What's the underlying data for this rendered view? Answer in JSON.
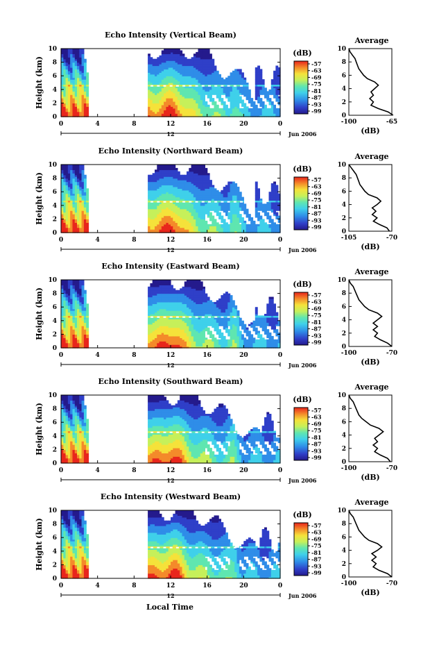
{
  "chart_data": {
    "type": "heatmap",
    "xlabel": "Local Time",
    "date_label": "Jun 2006",
    "colorbar": {
      "unit": "(dB)",
      "ticks": [
        "-57",
        "-63",
        "-69",
        "-75",
        "-81",
        "-87",
        "-93",
        "-99"
      ],
      "range": [
        -99,
        -57
      ]
    },
    "x_ticks": [
      "0",
      "4",
      "8",
      "12",
      "16",
      "20",
      "0"
    ],
    "xlim": [
      0,
      24
    ],
    "midnight_label": "12",
    "y_ticks": [
      "0",
      "2",
      "4",
      "6",
      "8",
      "10"
    ],
    "ylim": [
      0,
      10
    ],
    "ylabel": "Height (km)",
    "data_gap_hours": [
      3,
      9.4
    ],
    "melting_layer_km": 4.5,
    "panels": [
      {
        "title": "Echo Intensity (Vertical Beam)",
        "profile": {
          "title": "Average",
          "xlabel": "(dB)",
          "x_ticks": [
            "-100",
            "-65"
          ],
          "xlim": [
            -100,
            -65
          ],
          "y_ticks": [
            "0",
            "2",
            "4",
            "6",
            "8",
            "10"
          ],
          "points": [
            [
              -64,
              0
            ],
            [
              -68,
              0.5
            ],
            [
              -76,
              1
            ],
            [
              -82,
              1.5
            ],
            [
              -80,
              2
            ],
            [
              -83,
              2.5
            ],
            [
              -80,
              3
            ],
            [
              -82,
              3.5
            ],
            [
              -79,
              4
            ],
            [
              -76,
              4.5
            ],
            [
              -79,
              5
            ],
            [
              -85,
              5.5
            ],
            [
              -88,
              6
            ],
            [
              -90,
              6.5
            ],
            [
              -92,
              7
            ],
            [
              -93,
              7.5
            ],
            [
              -94,
              8
            ],
            [
              -95,
              8.5
            ],
            [
              -97,
              9
            ],
            [
              -99,
              9.5
            ],
            [
              -100,
              10
            ]
          ]
        }
      },
      {
        "title": "Echo Intensity (Northward Beam)",
        "profile": {
          "title": "Average",
          "xlabel": "(dB)",
          "x_ticks": [
            "-105",
            "-70"
          ],
          "xlim": [
            -105,
            -70
          ],
          "y_ticks": [
            "0",
            "2",
            "4",
            "6",
            "8",
            "10"
          ],
          "points": [
            [
              -72,
              0
            ],
            [
              -74,
              0.5
            ],
            [
              -80,
              1
            ],
            [
              -85,
              1.5
            ],
            [
              -82,
              2
            ],
            [
              -86,
              2.5
            ],
            [
              -83,
              3
            ],
            [
              -86,
              3.5
            ],
            [
              -82,
              4
            ],
            [
              -79,
              4.5
            ],
            [
              -82,
              5
            ],
            [
              -89,
              5.5
            ],
            [
              -92,
              6
            ],
            [
              -94,
              6.5
            ],
            [
              -96,
              7
            ],
            [
              -97,
              7.5
            ],
            [
              -98,
              8
            ],
            [
              -99,
              8.5
            ],
            [
              -101,
              9
            ],
            [
              -103,
              9.5
            ],
            [
              -105,
              10
            ]
          ]
        }
      },
      {
        "title": "Echo Intensity (Eastward Beam)",
        "profile": {
          "title": "Average",
          "xlabel": "(dB)",
          "x_ticks": [
            "-100",
            "-70"
          ],
          "xlim": [
            -100,
            -70
          ],
          "y_ticks": [
            "0",
            "2",
            "4",
            "6",
            "8",
            "10"
          ],
          "points": [
            [
              -70,
              0
            ],
            [
              -73,
              0.5
            ],
            [
              -78,
              1
            ],
            [
              -82,
              1.5
            ],
            [
              -80,
              2
            ],
            [
              -83,
              2.5
            ],
            [
              -80,
              3
            ],
            [
              -83,
              3.5
            ],
            [
              -80,
              4
            ],
            [
              -77,
              4.5
            ],
            [
              -80,
              5
            ],
            [
              -86,
              5.5
            ],
            [
              -89,
              6
            ],
            [
              -91,
              6.5
            ],
            [
              -93,
              7
            ],
            [
              -94,
              7.5
            ],
            [
              -95,
              8
            ],
            [
              -96,
              8.5
            ],
            [
              -97,
              9
            ],
            [
              -99,
              9.5
            ],
            [
              -100,
              10
            ]
          ]
        }
      },
      {
        "title": "Echo Intensity (Southward Beam)",
        "profile": {
          "title": "Average",
          "xlabel": "(dB)",
          "x_ticks": [
            "-100",
            "-70"
          ],
          "xlim": [
            -100,
            -70
          ],
          "y_ticks": [
            "0",
            "2",
            "4",
            "6",
            "8",
            "10"
          ],
          "points": [
            [
              -71,
              0
            ],
            [
              -73,
              0.5
            ],
            [
              -78,
              1
            ],
            [
              -82,
              1.5
            ],
            [
              -80,
              2
            ],
            [
              -83,
              2.5
            ],
            [
              -80,
              3
            ],
            [
              -82,
              3.5
            ],
            [
              -79,
              4
            ],
            [
              -76,
              4.5
            ],
            [
              -79,
              5
            ],
            [
              -85,
              5.5
            ],
            [
              -88,
              6
            ],
            [
              -91,
              6.5
            ],
            [
              -93,
              7
            ],
            [
              -94,
              7.5
            ],
            [
              -95,
              8
            ],
            [
              -96,
              8.5
            ],
            [
              -97,
              9
            ],
            [
              -99,
              9.5
            ],
            [
              -100,
              10
            ]
          ]
        }
      },
      {
        "title": "Echo Intensity (Westward Beam)",
        "profile": {
          "title": "Average",
          "xlabel": "(dB)",
          "x_ticks": [
            "-100",
            "-70"
          ],
          "xlim": [
            -100,
            -70
          ],
          "y_ticks": [
            "0",
            "2",
            "4",
            "6",
            "8",
            "10"
          ],
          "points": [
            [
              -70,
              0
            ],
            [
              -73,
              0.5
            ],
            [
              -79,
              1
            ],
            [
              -83,
              1.5
            ],
            [
              -81,
              2
            ],
            [
              -84,
              2.5
            ],
            [
              -81,
              3
            ],
            [
              -84,
              3.5
            ],
            [
              -80,
              4
            ],
            [
              -77,
              4.5
            ],
            [
              -80,
              5
            ],
            [
              -86,
              5.5
            ],
            [
              -89,
              6
            ],
            [
              -91,
              6.5
            ],
            [
              -93,
              7
            ],
            [
              -94,
              7.5
            ],
            [
              -95,
              8
            ],
            [
              -96,
              8.5
            ],
            [
              -97,
              9
            ],
            [
              -99,
              9.5
            ],
            [
              -100,
              10
            ]
          ]
        }
      }
    ]
  }
}
